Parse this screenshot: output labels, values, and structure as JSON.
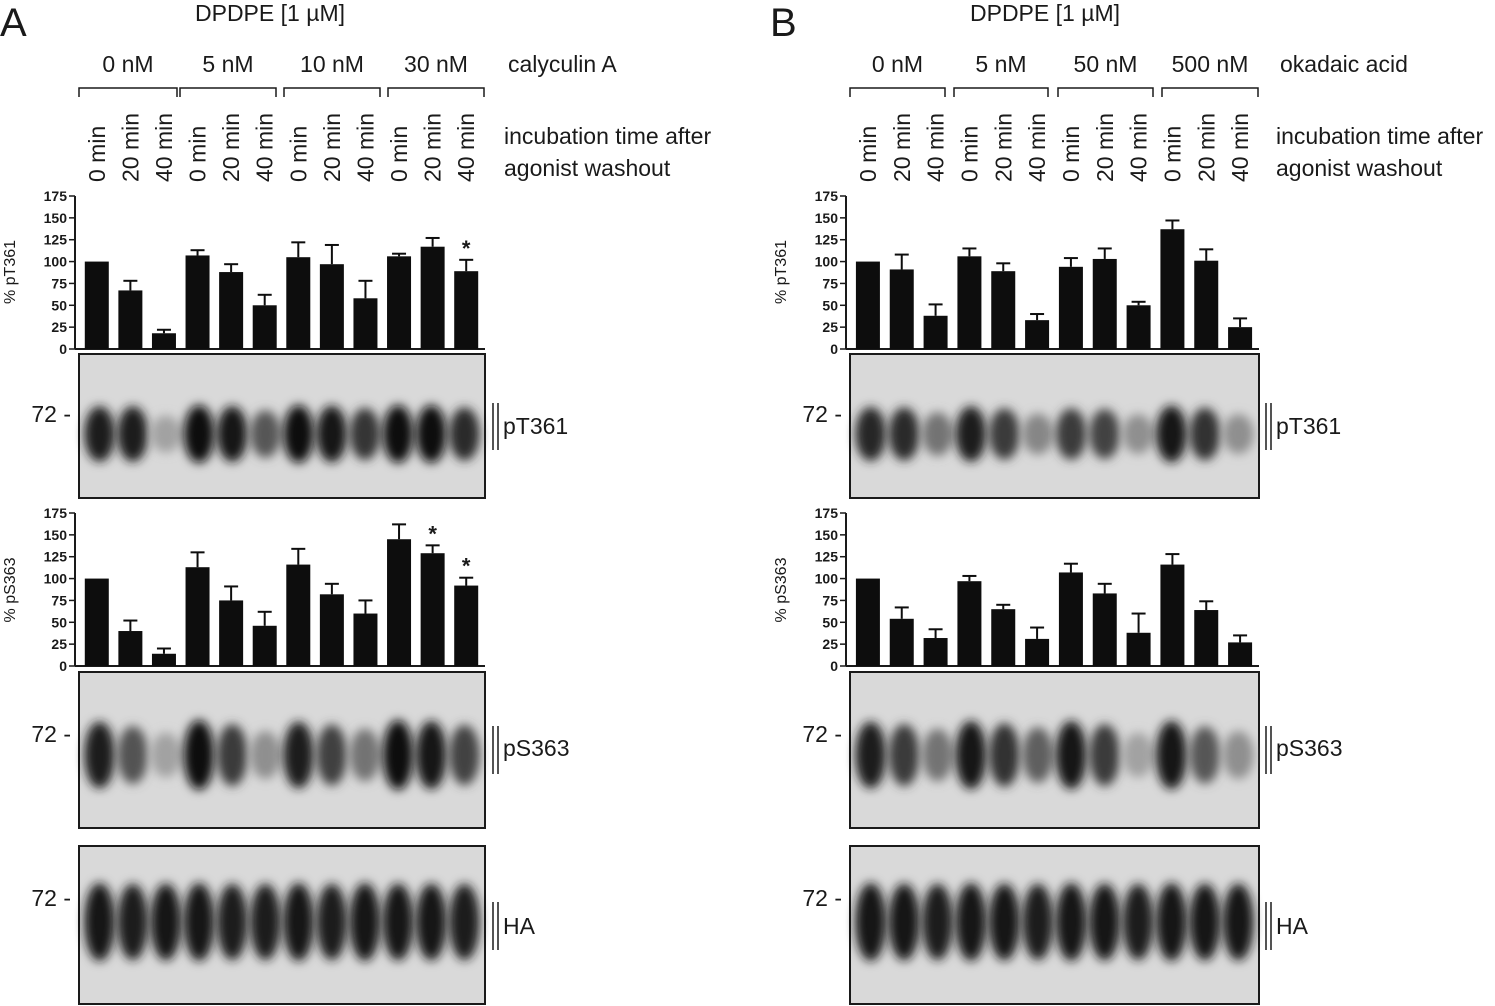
{
  "common": {
    "agonist": "DPDPE [1 µM]",
    "time_caption_line1": "incubation time after",
    "time_caption_line2": "agonist washout",
    "time_labels": [
      "0 min",
      "20 min",
      "40 min"
    ],
    "yticks": [
      0,
      25,
      50,
      75,
      100,
      125,
      150,
      175
    ],
    "mw_marker": "72 -"
  },
  "panels": [
    {
      "letter": "A",
      "inhibitor": "calyculin A",
      "concentrations": [
        "0 nM",
        "5 nM",
        "10 nM",
        "30 nM"
      ],
      "band_intensity": {
        "pT361": [
          0.9,
          0.9,
          0.2,
          1,
          0.92,
          0.6,
          1,
          0.95,
          0.78,
          1,
          1,
          0.82
        ],
        "pS363": [
          0.9,
          0.62,
          0.2,
          1,
          0.75,
          0.3,
          0.9,
          0.72,
          0.45,
          1,
          0.95,
          0.7
        ],
        "HA": [
          0.95,
          0.9,
          0.92,
          0.95,
          0.9,
          0.9,
          0.95,
          0.9,
          0.95,
          0.92,
          0.92,
          0.9
        ]
      }
    },
    {
      "letter": "B",
      "inhibitor": "okadaic acid",
      "concentrations": [
        "0 nM",
        "5 nM",
        "50 nM",
        "500 nM"
      ],
      "band_intensity": {
        "pT361": [
          0.85,
          0.82,
          0.45,
          0.9,
          0.75,
          0.35,
          0.75,
          0.7,
          0.3,
          0.95,
          0.8,
          0.3
        ],
        "pS363": [
          0.9,
          0.75,
          0.45,
          0.95,
          0.8,
          0.55,
          0.95,
          0.75,
          0.2,
          0.95,
          0.6,
          0.3
        ],
        "HA": [
          0.95,
          0.92,
          0.9,
          0.95,
          0.92,
          0.9,
          0.95,
          0.92,
          0.9,
          0.95,
          0.92,
          0.92
        ]
      }
    }
  ],
  "chart_data": [
    {
      "type": "bar",
      "title": "A – calyculin A, pT361",
      "ylabel": "% pT361",
      "ylim": [
        0,
        175
      ],
      "label": "pT361",
      "categories": [
        "0 nM 0 min",
        "0 nM 20 min",
        "0 nM 40 min",
        "5 nM 0 min",
        "5 nM 20 min",
        "5 nM 40 min",
        "10 nM 0 min",
        "10 nM 20 min",
        "10 nM 40 min",
        "30 nM 0 min",
        "30 nM 20 min",
        "30 nM 40 min"
      ],
      "values": [
        100,
        67,
        18,
        107,
        88,
        50,
        105,
        97,
        58,
        106,
        117,
        89
      ],
      "errors": [
        0,
        11,
        4,
        6,
        9,
        12,
        17,
        22,
        20,
        3,
        10,
        13
      ],
      "significance": [
        "",
        "",
        "",
        "",
        "",
        "",
        "",
        "",
        "",
        "",
        "",
        "*"
      ]
    },
    {
      "type": "bar",
      "title": "A – calyculin A, pS363",
      "ylabel": "% pS363",
      "ylim": [
        0,
        175
      ],
      "label": "pS363",
      "categories": [
        "0 nM 0 min",
        "0 nM 20 min",
        "0 nM 40 min",
        "5 nM 0 min",
        "5 nM 20 min",
        "5 nM 40 min",
        "10 nM 0 min",
        "10 nM 20 min",
        "10 nM 40 min",
        "30 nM 0 min",
        "30 nM 20 min",
        "30 nM 40 min"
      ],
      "values": [
        100,
        40,
        14,
        113,
        75,
        46,
        116,
        82,
        60,
        145,
        129,
        92
      ],
      "errors": [
        0,
        12,
        6,
        17,
        16,
        16,
        18,
        12,
        15,
        17,
        9,
        9
      ],
      "significance": [
        "",
        "",
        "",
        "",
        "",
        "",
        "",
        "",
        "",
        "",
        "*",
        "*"
      ]
    },
    {
      "type": "bar",
      "title": "B – okadaic acid, pT361",
      "ylabel": "% pT361",
      "ylim": [
        0,
        175
      ],
      "label": "pT361",
      "categories": [
        "0 nM 0 min",
        "0 nM 20 min",
        "0 nM 40 min",
        "5 nM 0 min",
        "5 nM 20 min",
        "5 nM 40 min",
        "50 nM 0 min",
        "50 nM 20 min",
        "50 nM 40 min",
        "500 nM 0 min",
        "500 nM 20 min",
        "500 nM 40 min"
      ],
      "values": [
        100,
        91,
        38,
        106,
        89,
        33,
        94,
        103,
        50,
        137,
        101,
        25
      ],
      "errors": [
        0,
        17,
        13,
        9,
        9,
        7,
        10,
        12,
        4,
        10,
        13,
        10
      ],
      "significance": [
        "",
        "",
        "",
        "",
        "",
        "",
        "",
        "",
        "",
        "",
        "",
        ""
      ]
    },
    {
      "type": "bar",
      "title": "B – okadaic acid, pS363",
      "ylabel": "% pS363",
      "ylim": [
        0,
        175
      ],
      "label": "pS363",
      "categories": [
        "0 nM 0 min",
        "0 nM 20 min",
        "0 nM 40 min",
        "5 nM 0 min",
        "5 nM 20 min",
        "5 nM 40 min",
        "50 nM 0 min",
        "50 nM 20 min",
        "50 nM 40 min",
        "500 nM 0 min",
        "500 nM 20 min",
        "500 nM 40 min"
      ],
      "values": [
        100,
        54,
        32,
        97,
        65,
        31,
        107,
        83,
        38,
        116,
        64,
        27
      ],
      "errors": [
        0,
        13,
        10,
        6,
        5,
        13,
        10,
        11,
        22,
        12,
        10,
        8
      ],
      "significance": [
        "",
        "",
        "",
        "",
        "",
        "",
        "",
        "",
        "",
        "",
        "",
        ""
      ]
    }
  ]
}
